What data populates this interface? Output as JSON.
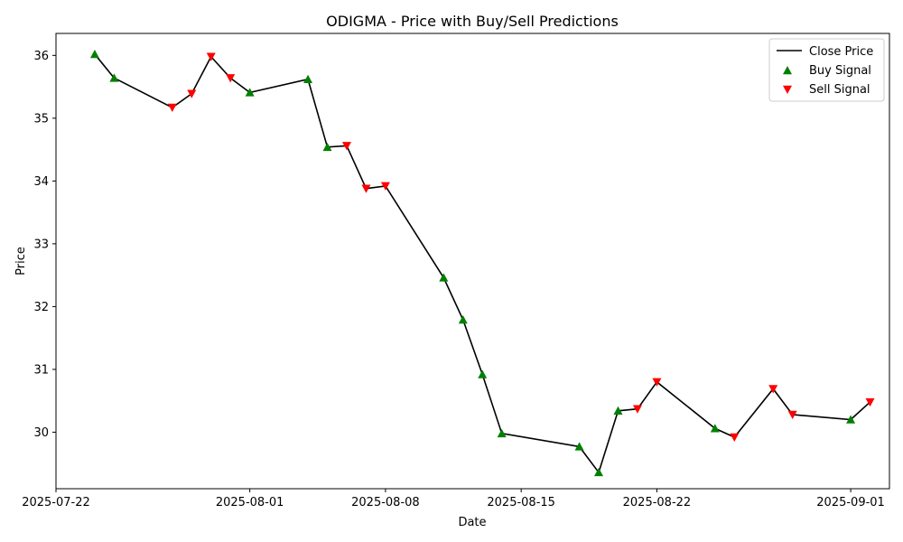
{
  "chart_data": {
    "type": "line",
    "title": "ODIGMA - Price with Buy/Sell Predictions",
    "xlabel": "Date",
    "ylabel": "Price",
    "xlim": [
      "2025-07-22",
      "2025-09-03"
    ],
    "ylim": [
      29.1,
      36.35
    ],
    "x_ticks": [
      "2025-07-22",
      "2025-08-01",
      "2025-08-08",
      "2025-08-15",
      "2025-08-22",
      "2025-09-01"
    ],
    "y_ticks": [
      30,
      31,
      32,
      33,
      34,
      35,
      36
    ],
    "grid": false,
    "legend_position": "top-right",
    "series": [
      {
        "name": "Close Price",
        "color": "#000000",
        "points": [
          {
            "x": "2025-07-24",
            "y": 36.02
          },
          {
            "x": "2025-07-25",
            "y": 35.64
          },
          {
            "x": "2025-07-28",
            "y": 35.17
          },
          {
            "x": "2025-07-29",
            "y": 35.39
          },
          {
            "x": "2025-07-30",
            "y": 35.98
          },
          {
            "x": "2025-07-31",
            "y": 35.64
          },
          {
            "x": "2025-08-01",
            "y": 35.41
          },
          {
            "x": "2025-08-04",
            "y": 35.62
          },
          {
            "x": "2025-08-05",
            "y": 34.54
          },
          {
            "x": "2025-08-06",
            "y": 34.56
          },
          {
            "x": "2025-08-07",
            "y": 33.88
          },
          {
            "x": "2025-08-08",
            "y": 33.92
          },
          {
            "x": "2025-08-11",
            "y": 32.46
          },
          {
            "x": "2025-08-12",
            "y": 31.79
          },
          {
            "x": "2025-08-13",
            "y": 30.92
          },
          {
            "x": "2025-08-14",
            "y": 29.98
          },
          {
            "x": "2025-08-18",
            "y": 29.77
          },
          {
            "x": "2025-08-19",
            "y": 29.36
          },
          {
            "x": "2025-08-20",
            "y": 30.34
          },
          {
            "x": "2025-08-21",
            "y": 30.37
          },
          {
            "x": "2025-08-22",
            "y": 30.8
          },
          {
            "x": "2025-08-25",
            "y": 30.06
          },
          {
            "x": "2025-08-26",
            "y": 29.92
          },
          {
            "x": "2025-08-28",
            "y": 30.69
          },
          {
            "x": "2025-08-29",
            "y": 30.28
          },
          {
            "x": "2025-09-01",
            "y": 30.2
          },
          {
            "x": "2025-09-02",
            "y": 30.48
          }
        ]
      },
      {
        "name": "Buy Signal",
        "color": "#008000",
        "marker": "triangle-up",
        "points": [
          {
            "x": "2025-07-24",
            "y": 36.02
          },
          {
            "x": "2025-07-25",
            "y": 35.64
          },
          {
            "x": "2025-08-01",
            "y": 35.41
          },
          {
            "x": "2025-08-04",
            "y": 35.62
          },
          {
            "x": "2025-08-05",
            "y": 34.54
          },
          {
            "x": "2025-08-11",
            "y": 32.46
          },
          {
            "x": "2025-08-12",
            "y": 31.79
          },
          {
            "x": "2025-08-13",
            "y": 30.92
          },
          {
            "x": "2025-08-14",
            "y": 29.98
          },
          {
            "x": "2025-08-18",
            "y": 29.77
          },
          {
            "x": "2025-08-19",
            "y": 29.36
          },
          {
            "x": "2025-08-20",
            "y": 30.34
          },
          {
            "x": "2025-08-25",
            "y": 30.06
          },
          {
            "x": "2025-09-01",
            "y": 30.2
          }
        ]
      },
      {
        "name": "Sell Signal",
        "color": "#ff0000",
        "marker": "triangle-down",
        "points": [
          {
            "x": "2025-07-28",
            "y": 35.17
          },
          {
            "x": "2025-07-29",
            "y": 35.39
          },
          {
            "x": "2025-07-30",
            "y": 35.98
          },
          {
            "x": "2025-07-31",
            "y": 35.64
          },
          {
            "x": "2025-08-06",
            "y": 34.56
          },
          {
            "x": "2025-08-07",
            "y": 33.88
          },
          {
            "x": "2025-08-08",
            "y": 33.92
          },
          {
            "x": "2025-08-21",
            "y": 30.37
          },
          {
            "x": "2025-08-22",
            "y": 30.8
          },
          {
            "x": "2025-08-26",
            "y": 29.92
          },
          {
            "x": "2025-08-28",
            "y": 30.69
          },
          {
            "x": "2025-08-29",
            "y": 30.28
          },
          {
            "x": "2025-09-02",
            "y": 30.48
          }
        ]
      }
    ]
  }
}
